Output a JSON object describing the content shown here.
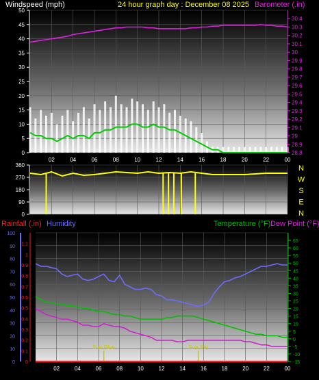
{
  "header": {
    "left": "Windspeed (mph)",
    "center": "24 hour graph day : December 08 2025",
    "right": "Barometer (.in)"
  },
  "colors": {
    "background": "#000000",
    "wind": "#ffffff",
    "wind_avg": "#00cc00",
    "barometer": "#e020e0",
    "direction": "#ffff00",
    "humidity": "#6c6cff",
    "rainfall": "#ff2020",
    "temperature": "#00c000",
    "dew_point": "#d020d0",
    "sun": "#c8c800"
  },
  "chart_data": [
    {
      "type": "line",
      "title": "24 hour graph day : December 08 2025",
      "x_ticks": [
        "02",
        "04",
        "06",
        "08",
        "10",
        "12",
        "14",
        "16",
        "18",
        "20",
        "22",
        "00"
      ],
      "x": [
        0,
        0.5,
        1,
        1.5,
        2,
        2.5,
        3,
        3.5,
        4,
        4.5,
        5,
        5.5,
        6,
        6.5,
        7,
        7.5,
        8,
        8.5,
        9,
        9.5,
        10,
        10.5,
        11,
        11.5,
        12,
        12.5,
        13,
        13.5,
        14,
        14.5,
        15,
        15.5,
        16,
        16.5,
        17,
        17.5,
        18,
        18.5,
        19,
        19.5,
        20,
        20.5,
        21,
        21.5,
        22,
        22.5,
        23,
        23.5,
        24
      ],
      "left_axis": {
        "label": "Windspeed (mph)",
        "ylim": [
          0,
          50
        ],
        "ticks": [
          0,
          5,
          10,
          15,
          20,
          25,
          30,
          35,
          40,
          45,
          50
        ]
      },
      "right_axis": {
        "label": "Barometer (.in)",
        "ylim": [
          28.8,
          30.5
        ],
        "ticks": [
          "28.8",
          "28.9",
          "29",
          "29.1",
          "29.2",
          "29.3",
          "29.4",
          "29.5",
          "29.6",
          "29.7",
          "29.8",
          "29.9",
          "30",
          "30.1",
          "30.2",
          "30.3",
          "30.4"
        ]
      },
      "series": [
        {
          "name": "Windspeed (mph)",
          "axis": "left",
          "kind": "gust",
          "values": [
            16,
            12,
            15,
            13,
            14,
            10,
            13,
            15,
            11,
            14,
            16,
            12,
            17,
            15,
            18,
            16,
            20,
            17,
            16,
            19,
            18,
            17,
            15,
            18,
            16,
            17,
            14,
            15,
            13,
            12,
            11,
            9,
            7,
            4,
            2,
            2,
            2,
            2,
            2,
            2,
            2,
            2,
            2,
            2,
            2,
            2,
            2,
            2,
            2
          ]
        },
        {
          "name": "Windspeed (mph)",
          "axis": "left",
          "kind": "average",
          "values": [
            7,
            6,
            6,
            5,
            5,
            4,
            5,
            6,
            5,
            6,
            6,
            5,
            7,
            7,
            8,
            8,
            9,
            9,
            9,
            10,
            10,
            9,
            9,
            10,
            9,
            9,
            8,
            8,
            7,
            6,
            5,
            4,
            3,
            2,
            1,
            1,
            0,
            0,
            0,
            0,
            0,
            0,
            0,
            0,
            0,
            0,
            0,
            0,
            0
          ]
        },
        {
          "name": "Barometer (.in)",
          "axis": "right",
          "values": [
            30.12,
            30.13,
            30.14,
            30.15,
            30.16,
            30.17,
            30.18,
            30.19,
            30.21,
            30.22,
            30.23,
            30.24,
            30.25,
            30.26,
            30.27,
            30.28,
            30.29,
            30.29,
            30.3,
            30.3,
            30.3,
            30.3,
            30.29,
            30.29,
            30.28,
            30.28,
            30.28,
            30.28,
            30.28,
            30.28,
            30.29,
            30.29,
            30.3,
            30.3,
            30.31,
            30.31,
            30.32,
            30.32,
            30.32,
            30.32,
            30.32,
            30.32,
            30.32,
            30.33,
            30.32,
            30.32,
            30.31,
            30.31,
            30.3
          ]
        }
      ]
    },
    {
      "type": "line",
      "title": "",
      "x_ticks": [],
      "x": [
        0,
        1,
        2,
        3,
        4,
        5,
        6,
        7,
        8,
        9,
        10,
        11,
        12,
        13,
        14,
        15,
        16,
        17,
        18,
        19,
        20,
        21,
        22,
        23,
        24
      ],
      "left_axis": {
        "ylim": [
          0,
          360
        ],
        "ticks": [
          0,
          90,
          180,
          270,
          360
        ]
      },
      "right_labels": [
        "N",
        "W",
        "S",
        "E",
        "N"
      ],
      "series": [
        {
          "name": "Wind direction",
          "values": [
            300,
            290,
            310,
            280,
            300,
            285,
            290,
            300,
            310,
            305,
            300,
            310,
            300,
            305,
            300,
            310,
            300,
            290,
            290,
            290,
            290,
            295,
            300,
            300,
            300
          ]
        }
      ],
      "spikes_x": [
        1.5,
        12.4,
        12.9,
        13.4,
        14.1,
        15.4
      ]
    },
    {
      "type": "line",
      "title": "",
      "x_ticks": [
        "02",
        "04",
        "06",
        "08",
        "10",
        "12",
        "14",
        "16",
        "18",
        "20",
        "22",
        "00"
      ],
      "x": [
        0,
        0.5,
        1,
        1.5,
        2,
        2.5,
        3,
        3.5,
        4,
        4.5,
        5,
        5.5,
        6,
        6.5,
        7,
        7.5,
        8,
        8.5,
        9,
        9.5,
        10,
        10.5,
        11,
        11.5,
        12,
        12.5,
        13,
        13.5,
        14,
        14.5,
        15,
        15.5,
        16,
        16.5,
        17,
        17.5,
        18,
        18.5,
        19,
        19.5,
        20,
        20.5,
        21,
        21.5,
        22,
        22.5,
        23,
        23.5,
        24
      ],
      "axes": {
        "rainfall": {
          "label": "Rainfall (.in)",
          "ylim": [
            0,
            1.2
          ],
          "ticks": [
            "0",
            "0.1",
            "0.2",
            "0.3",
            "0.4",
            "0.5",
            "0.6",
            "0.7",
            "0.8",
            "0.9",
            "1",
            "1.1"
          ]
        },
        "humidity": {
          "label": "Humidity",
          "ylim": [
            0,
            100
          ],
          "ticks": [
            0,
            10,
            20,
            30,
            40,
            50,
            60,
            70,
            80,
            90,
            100
          ]
        },
        "temperature": {
          "label": "Temperature (°F)",
          "ylim": [
            -15,
            70
          ],
          "ticks": [
            -15,
            -10,
            -5,
            0,
            5,
            10,
            15,
            20,
            25,
            30,
            35,
            40,
            45,
            50,
            55,
            60,
            65
          ]
        },
        "dew_point_label": "Dew Point (°F)"
      },
      "series": [
        {
          "name": "Humidity",
          "axis": "humidity",
          "values": [
            76,
            74,
            74,
            73,
            72,
            68,
            66,
            67,
            68,
            64,
            63,
            64,
            66,
            68,
            63,
            62,
            67,
            60,
            58,
            56,
            56,
            57,
            56,
            52,
            51,
            48,
            48,
            47,
            46,
            45,
            44,
            43,
            44,
            46,
            53,
            58,
            62,
            63,
            65,
            66,
            68,
            70,
            72,
            74,
            74,
            75,
            76,
            75,
            75
          ]
        },
        {
          "name": "Temperature (°F)",
          "axis": "temperature",
          "values": [
            28,
            26,
            24,
            24,
            23,
            23,
            22,
            22,
            21,
            20,
            20,
            19,
            18,
            18,
            17,
            16,
            16,
            15,
            15,
            14,
            13,
            13,
            13,
            13,
            13,
            14,
            14,
            15,
            15,
            15,
            15,
            14,
            13,
            12,
            11,
            10,
            9,
            8,
            7,
            6,
            5,
            4,
            3,
            3,
            2,
            2,
            2,
            1,
            1
          ]
        },
        {
          "name": "Dew Point (°F)",
          "axis": "temperature",
          "values": [
            20,
            18,
            16,
            15,
            14,
            13,
            13,
            12,
            11,
            9,
            9,
            8,
            8,
            10,
            9,
            8,
            8,
            7,
            5,
            4,
            3,
            2,
            1,
            -1,
            -1,
            -1,
            -1,
            -2,
            -2,
            -1,
            -1,
            -1,
            -1,
            -1,
            -1,
            -1,
            -1,
            -1,
            -1,
            -1,
            -2,
            -2,
            -3,
            -4,
            -4,
            -5,
            -5,
            -5,
            -5
          ]
        },
        {
          "name": "Rainfall (.in)",
          "axis": "rainfall",
          "values": [
            0,
            0,
            0,
            0,
            0,
            0,
            0,
            0,
            0,
            0,
            0,
            0,
            0,
            0,
            0,
            0,
            0,
            0,
            0,
            0,
            0,
            0,
            0,
            0,
            0,
            0,
            0,
            0,
            0,
            0,
            0,
            0,
            0,
            0,
            0,
            0,
            0,
            0,
            0,
            0,
            0,
            0,
            0,
            0,
            0,
            0,
            0,
            0,
            0
          ]
        }
      ],
      "annotations": [
        {
          "text": "Sun Rise",
          "x": 6.5
        },
        {
          "text": "Sun Set",
          "x": 15.5
        }
      ],
      "legend": {
        "left": [
          "Rainfall (.in)",
          "Humidity"
        ],
        "right": [
          "Temperature (°F)",
          "Dew Point (°F)"
        ]
      }
    }
  ]
}
